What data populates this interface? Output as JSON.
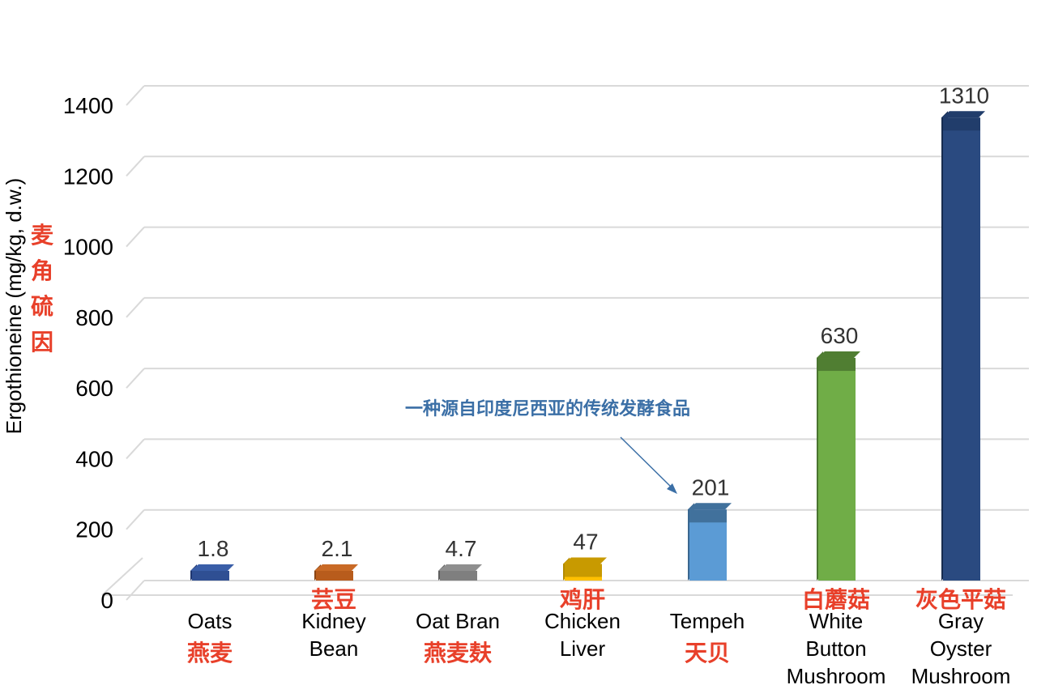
{
  "chart_data": {
    "type": "bar",
    "ylabel": "Ergothioneine (mg/kg, d.w.)",
    "ylabel_cn": [
      "麦",
      "角",
      "硫",
      "因"
    ],
    "ylim": [
      0,
      1400
    ],
    "yticks": [
      0,
      200,
      400,
      600,
      800,
      1000,
      1200,
      1400
    ],
    "grid": true,
    "categories": [
      {
        "en": [
          "Oats"
        ],
        "cn": "燕麦",
        "cn_pos": "below",
        "value": 1.8,
        "label": "1.8",
        "front": "#2f4f93",
        "top": "#3a5ea8",
        "side": "#1f3670"
      },
      {
        "en": [
          "Kidney",
          "Bean"
        ],
        "cn": "芸豆",
        "cn_pos": "above",
        "value": 2.1,
        "label": "2.1",
        "front": "#b85c1c",
        "top": "#c96a26",
        "side": "#8a4413"
      },
      {
        "en": [
          "Oat Bran"
        ],
        "cn": "燕麦麸",
        "cn_pos": "below",
        "value": 4.7,
        "label": "4.7",
        "front": "#7f7f7f",
        "top": "#8f8f8f",
        "side": "#5e5e5e"
      },
      {
        "en": [
          "Chicken",
          "Liver"
        ],
        "cn": "鸡肝",
        "cn_pos": "above",
        "value": 47,
        "label": "47",
        "front": "#ffc000",
        "top": "#c89a00",
        "side": "#b38a00"
      },
      {
        "en": [
          "Tempeh"
        ],
        "cn": "天贝",
        "cn_pos": "below",
        "value": 201,
        "label": "201",
        "front": "#5b9bd5",
        "top": "#41719c",
        "side": "#3a6790"
      },
      {
        "en": [
          "White",
          "Button",
          "Mushroom"
        ],
        "cn": "白蘑菇",
        "cn_pos": "above",
        "value": 630,
        "label": "630",
        "front": "#70ad47",
        "top": "#507e32",
        "side": "#4a7530"
      },
      {
        "en": [
          "Gray",
          "Oyster",
          "Mushroom"
        ],
        "cn": "灰色平菇",
        "cn_pos": "above",
        "value": 1310,
        "label": "1310",
        "front": "#2a4a80",
        "top": "#213d6b",
        "side": "#172c4f"
      }
    ],
    "annotation": "一种源自印度尼西亚的传统发酵食品"
  }
}
